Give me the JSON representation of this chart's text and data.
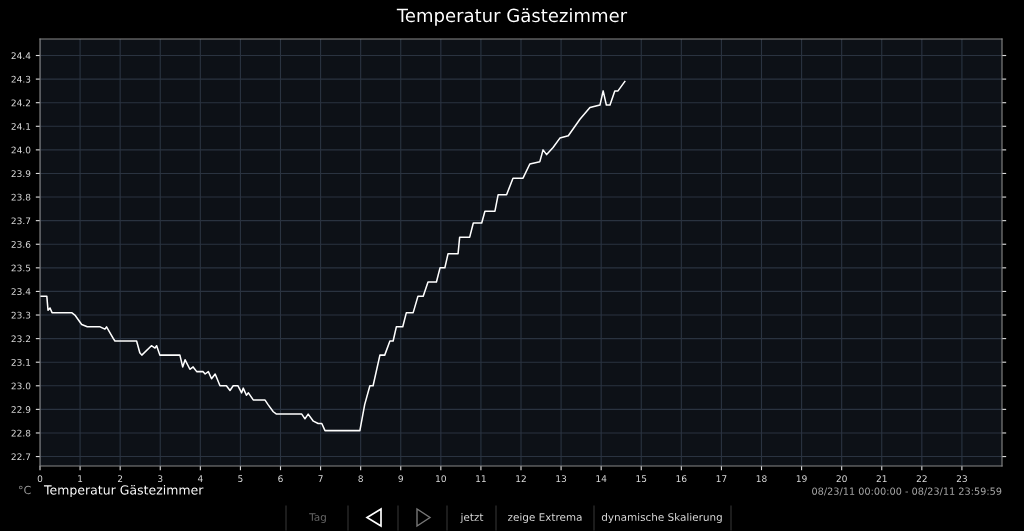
{
  "chart_data": {
    "type": "line",
    "title": "Temperatur Gästezimmer",
    "ylabel": "°C",
    "x": [
      0,
      0.17,
      0.2,
      0.25,
      0.3,
      0.79,
      0.87,
      1.04,
      1.18,
      1.5,
      1.62,
      1.66,
      1.83,
      1.87,
      2.41,
      2.49,
      2.54,
      2.78,
      2.87,
      2.91,
      2.99,
      3.49,
      3.56,
      3.62,
      3.74,
      3.82,
      3.91,
      4.07,
      4.12,
      4.2,
      4.28,
      4.37,
      4.49,
      4.65,
      4.74,
      4.82,
      4.94,
      5.03,
      5.07,
      5.15,
      5.2,
      5.32,
      5.61,
      5.69,
      5.82,
      5.9,
      6.53,
      6.61,
      6.69,
      6.82,
      6.94,
      7.03,
      7.11,
      7.98,
      8.1,
      8.23,
      8.31,
      8.48,
      8.6,
      8.73,
      8.81,
      8.89,
      9.05,
      9.14,
      9.31,
      9.43,
      9.56,
      9.68,
      9.89,
      9.98,
      10.1,
      10.18,
      10.43,
      10.47,
      10.72,
      10.81,
      11.02,
      11.1,
      11.35,
      11.43,
      11.64,
      11.8,
      12.05,
      12.22,
      12.47,
      12.55,
      12.64,
      12.8,
      12.97,
      13.18,
      13.47,
      13.72,
      13.97,
      14.05,
      14.13,
      14.22,
      14.34,
      14.42,
      14.59
    ],
    "series": [
      {
        "name": "Temperatur Gästezimmer",
        "color": "#ffffff",
        "values": [
          23.38,
          23.38,
          23.32,
          23.33,
          23.31,
          23.31,
          23.3,
          23.26,
          23.25,
          23.25,
          23.24,
          23.25,
          23.2,
          23.19,
          23.19,
          23.14,
          23.13,
          23.17,
          23.16,
          23.17,
          23.13,
          23.13,
          23.08,
          23.11,
          23.07,
          23.08,
          23.06,
          23.06,
          23.05,
          23.06,
          23.03,
          23.05,
          23.0,
          23.0,
          22.98,
          23.0,
          23.0,
          22.97,
          22.99,
          22.96,
          22.97,
          22.94,
          22.94,
          22.92,
          22.89,
          22.88,
          22.88,
          22.86,
          22.88,
          22.85,
          22.84,
          22.84,
          22.81,
          22.81,
          22.92,
          23.0,
          23.0,
          23.13,
          23.13,
          23.19,
          23.19,
          23.25,
          23.25,
          23.31,
          23.31,
          23.38,
          23.38,
          23.44,
          23.44,
          23.5,
          23.5,
          23.56,
          23.56,
          23.63,
          23.63,
          23.69,
          23.69,
          23.74,
          23.74,
          23.81,
          23.81,
          23.88,
          23.88,
          23.94,
          23.95,
          24.0,
          23.98,
          24.01,
          24.05,
          24.06,
          24.13,
          24.18,
          24.19,
          24.25,
          24.19,
          24.19,
          24.25,
          24.25,
          24.29
        ]
      }
    ],
    "xlim": [
      0,
      24
    ],
    "xticks": [
      0,
      1,
      2,
      3,
      4,
      5,
      6,
      7,
      8,
      9,
      10,
      11,
      12,
      13,
      14,
      15,
      16,
      17,
      18,
      19,
      20,
      21,
      22,
      23
    ],
    "ylim": [
      22.66,
      24.47
    ],
    "yticks": [
      {
        "value": 22.7,
        "label": "22.7"
      },
      {
        "value": 22.8,
        "label": "22.8"
      },
      {
        "value": 22.9,
        "label": "22.9"
      },
      {
        "value": 23.0,
        "label": "23.0"
      },
      {
        "value": 23.1,
        "label": "23.1"
      },
      {
        "value": 23.2,
        "label": "23.2"
      },
      {
        "value": 23.3,
        "label": "23.3"
      },
      {
        "value": 23.4,
        "label": "23.4"
      },
      {
        "value": 23.5,
        "label": "23.5"
      },
      {
        "value": 23.6,
        "label": "23.6"
      },
      {
        "value": 23.7,
        "label": "23.7"
      },
      {
        "value": 23.8,
        "label": "23.8"
      },
      {
        "value": 23.9,
        "label": "23.9"
      },
      {
        "value": 24.0,
        "label": "24.0"
      },
      {
        "value": 24.1,
        "label": "24.1"
      },
      {
        "value": 24.2,
        "label": "24.2"
      },
      {
        "value": 24.3,
        "label": "24.3"
      },
      {
        "value": 24.4,
        "label": "24.4"
      }
    ],
    "grid": true,
    "marker": "none",
    "line_style": "solid",
    "legend": "bottom left",
    "annotations": [
      "08/23/11 00:00:00 - 08/23/11 23:59:59",
      "Tag",
      "jetzt",
      "zeige Extrema",
      "dynamische Skalierung"
    ]
  }
}
